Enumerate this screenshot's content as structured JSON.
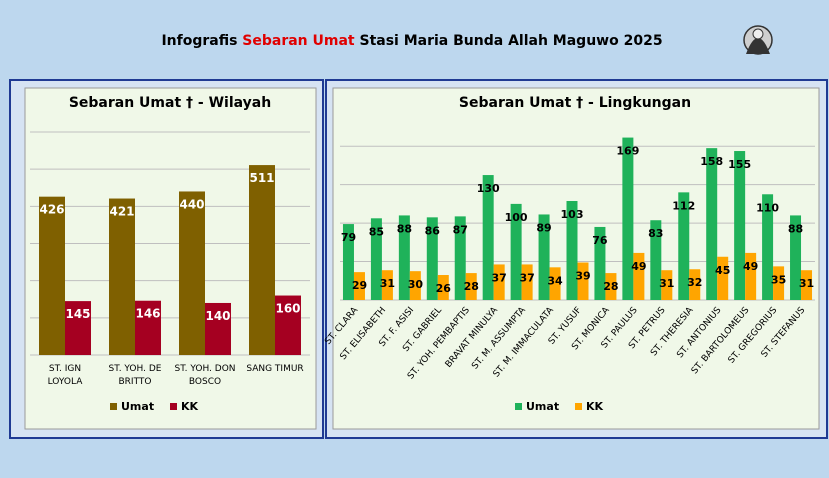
{
  "header": {
    "title_parts": [
      "Infografis ",
      "Sebaran Umat",
      " Stasi Maria Bunda Allah Maguwo 2025"
    ]
  },
  "chart_data": [
    {
      "type": "bar",
      "title": "Sebaran Umat † - Wilayah",
      "categories": [
        "ST. IGN LOYOLA",
        "ST. YOH. DE BRITTO",
        "ST. YOH. DON BOSCO",
        "SANG TIMUR"
      ],
      "series": [
        {
          "name": "Umat",
          "color": "#7f6000",
          "values": [
            426,
            421,
            440,
            511
          ]
        },
        {
          "name": "KK",
          "color": "#a50021",
          "values": [
            145,
            146,
            140,
            160
          ]
        }
      ],
      "ylim": [
        0,
        600
      ],
      "yticks": [
        0,
        100,
        200,
        300,
        400,
        500,
        600
      ],
      "ytick_labels": false,
      "grid": true,
      "legend": "bottom",
      "label_color": "#ffffff"
    },
    {
      "type": "bar",
      "title": "Sebaran Umat † - Lingkungan",
      "categories": [
        "ST. CLARA",
        "ST. ELISABETH",
        "ST. F. ASISI",
        "ST. GABRIEL",
        "ST. YOH. PEMBAPTIS",
        "BRAVAT MINULYA",
        "ST. M. ASSUMPTA",
        "ST. M. IMMACULATA",
        "ST. YUSUF",
        "ST. MONICA",
        "ST. PAULUS",
        "ST. PETRUS",
        "ST. THERESIA",
        "ST. ANTONIUS",
        "ST. BARTOLOMEUS",
        "ST. GREGORIUS",
        "ST. STEFANUS"
      ],
      "series": [
        {
          "name": "Umat",
          "color": "#1fb25a",
          "values": [
            79,
            85,
            88,
            86,
            87,
            130,
            100,
            89,
            103,
            76,
            169,
            83,
            112,
            158,
            155,
            110,
            88
          ]
        },
        {
          "name": "KK",
          "color": "#ffa500",
          "values": [
            29,
            31,
            30,
            26,
            28,
            37,
            37,
            34,
            39,
            28,
            49,
            31,
            32,
            45,
            49,
            35,
            31
          ]
        }
      ],
      "ylim": [
        0,
        180
      ],
      "yticks": [
        0,
        40,
        80,
        120,
        160
      ],
      "ytick_labels": false,
      "grid": true,
      "legend": "bottom",
      "label_color": "#000000"
    }
  ]
}
